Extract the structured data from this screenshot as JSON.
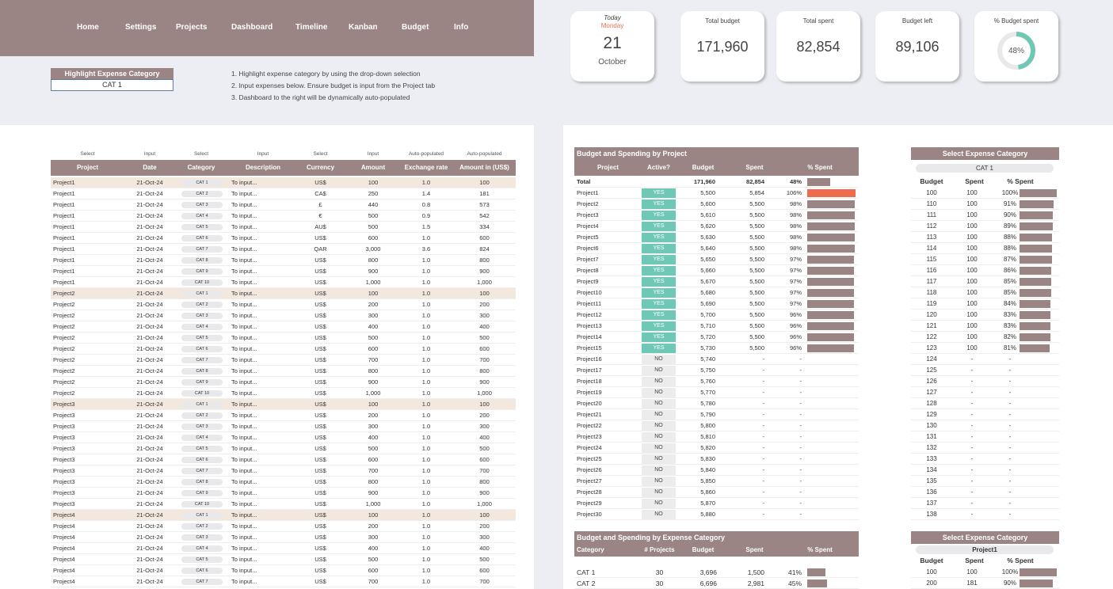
{
  "nav": [
    "Home",
    "Settings",
    "Projects",
    "Dashboard",
    "Timeline",
    "Kanban",
    "Budget",
    "Info"
  ],
  "highlight": {
    "label": "Highlight Expense Category",
    "value": "CAT 1"
  },
  "instructions": [
    "1. Highlight expense category by using the drop-down selection",
    "2. Input expenses below. Ensure budget is input from the Project tab",
    "3. Dashboard to the right will be dynamically auto-populated"
  ],
  "today": {
    "label": "Today",
    "day": "Monday",
    "date": "21",
    "month": "October"
  },
  "kpis": [
    {
      "title": "Total budget",
      "value": "171,960"
    },
    {
      "title": "Total spent",
      "value": "82,854"
    },
    {
      "title": "Budget left",
      "value": "89,106"
    },
    {
      "title": "% Budget spent",
      "value": "48%",
      "fraction": 0.48
    }
  ],
  "colors": {
    "accent": "#9a8584",
    "teal": "#6fc8b6",
    "over": "#ef6b4e",
    "highlight_row": "#f3e8de"
  },
  "expense_table": {
    "subheaders": [
      "Select",
      "Input",
      "Select",
      "Input",
      "Select",
      "Input",
      "Auto-populated",
      "Auto-populated"
    ],
    "headers": [
      "Project",
      "Date",
      "Category",
      "Description",
      "Currency",
      "Amount",
      "Exchange rate",
      "Amount in (US$)"
    ],
    "rows": [
      [
        "Project1",
        "21-Oct-24",
        "CAT 1",
        "To input...",
        "US$",
        "100",
        "1.0",
        "100"
      ],
      [
        "Project1",
        "21-Oct-24",
        "CAT 2",
        "To input...",
        "CA$",
        "250",
        "1.4",
        "181"
      ],
      [
        "Project1",
        "21-Oct-24",
        "CAT 3",
        "To input...",
        "£",
        "440",
        "0.8",
        "573"
      ],
      [
        "Project1",
        "21-Oct-24",
        "CAT 4",
        "To input...",
        "€",
        "500",
        "0.9",
        "542"
      ],
      [
        "Project1",
        "21-Oct-24",
        "CAT 5",
        "To input...",
        "AU$",
        "500",
        "1.5",
        "334"
      ],
      [
        "Project1",
        "21-Oct-24",
        "CAT 6",
        "To input...",
        "US$",
        "600",
        "1.0",
        "600"
      ],
      [
        "Project1",
        "21-Oct-24",
        "CAT 7",
        "To input...",
        "QAR",
        "3,000",
        "3.6",
        "824"
      ],
      [
        "Project1",
        "21-Oct-24",
        "CAT 8",
        "To input...",
        "US$",
        "800",
        "1.0",
        "800"
      ],
      [
        "Project1",
        "21-Oct-24",
        "CAT 9",
        "To input...",
        "US$",
        "900",
        "1.0",
        "900"
      ],
      [
        "Project1",
        "21-Oct-24",
        "CAT 10",
        "To input...",
        "US$",
        "1,000",
        "1.0",
        "1,000"
      ],
      [
        "Project2",
        "21-Oct-24",
        "CAT 1",
        "To input...",
        "US$",
        "100",
        "1.0",
        "100"
      ],
      [
        "Project2",
        "21-Oct-24",
        "CAT 2",
        "To input...",
        "US$",
        "200",
        "1.0",
        "200"
      ],
      [
        "Project2",
        "21-Oct-24",
        "CAT 3",
        "To input...",
        "US$",
        "300",
        "1.0",
        "300"
      ],
      [
        "Project2",
        "21-Oct-24",
        "CAT 4",
        "To input...",
        "US$",
        "400",
        "1.0",
        "400"
      ],
      [
        "Project2",
        "21-Oct-24",
        "CAT 5",
        "To input...",
        "US$",
        "500",
        "1.0",
        "500"
      ],
      [
        "Project2",
        "21-Oct-24",
        "CAT 6",
        "To input...",
        "US$",
        "600",
        "1.0",
        "600"
      ],
      [
        "Project2",
        "21-Oct-24",
        "CAT 7",
        "To input...",
        "US$",
        "700",
        "1.0",
        "700"
      ],
      [
        "Project2",
        "21-Oct-24",
        "CAT 8",
        "To input...",
        "US$",
        "800",
        "1.0",
        "800"
      ],
      [
        "Project2",
        "21-Oct-24",
        "CAT 9",
        "To input...",
        "US$",
        "900",
        "1.0",
        "900"
      ],
      [
        "Project2",
        "21-Oct-24",
        "CAT 10",
        "To input...",
        "US$",
        "1,000",
        "1.0",
        "1,000"
      ],
      [
        "Project3",
        "21-Oct-24",
        "CAT 1",
        "To input...",
        "US$",
        "100",
        "1.0",
        "100"
      ],
      [
        "Project3",
        "21-Oct-24",
        "CAT 2",
        "To input...",
        "US$",
        "200",
        "1.0",
        "200"
      ],
      [
        "Project3",
        "21-Oct-24",
        "CAT 3",
        "To input...",
        "US$",
        "300",
        "1.0",
        "300"
      ],
      [
        "Project3",
        "21-Oct-24",
        "CAT 4",
        "To input...",
        "US$",
        "400",
        "1.0",
        "400"
      ],
      [
        "Project3",
        "21-Oct-24",
        "CAT 5",
        "To input...",
        "US$",
        "500",
        "1.0",
        "500"
      ],
      [
        "Project3",
        "21-Oct-24",
        "CAT 6",
        "To input...",
        "US$",
        "600",
        "1.0",
        "600"
      ],
      [
        "Project3",
        "21-Oct-24",
        "CAT 7",
        "To input...",
        "US$",
        "700",
        "1.0",
        "700"
      ],
      [
        "Project3",
        "21-Oct-24",
        "CAT 8",
        "To input...",
        "US$",
        "800",
        "1.0",
        "800"
      ],
      [
        "Project3",
        "21-Oct-24",
        "CAT 9",
        "To input...",
        "US$",
        "900",
        "1.0",
        "900"
      ],
      [
        "Project3",
        "21-Oct-24",
        "CAT 10",
        "To input...",
        "US$",
        "1,000",
        "1.0",
        "1,000"
      ],
      [
        "Project4",
        "21-Oct-24",
        "CAT 1",
        "To input...",
        "US$",
        "100",
        "1.0",
        "100"
      ],
      [
        "Project4",
        "21-Oct-24",
        "CAT 2",
        "To input...",
        "US$",
        "200",
        "1.0",
        "200"
      ],
      [
        "Project4",
        "21-Oct-24",
        "CAT 3",
        "To input...",
        "US$",
        "300",
        "1.0",
        "300"
      ],
      [
        "Project4",
        "21-Oct-24",
        "CAT 4",
        "To input...",
        "US$",
        "400",
        "1.0",
        "400"
      ],
      [
        "Project4",
        "21-Oct-24",
        "CAT 5",
        "To input...",
        "US$",
        "500",
        "1.0",
        "500"
      ],
      [
        "Project4",
        "21-Oct-24",
        "CAT 6",
        "To input...",
        "US$",
        "600",
        "1.0",
        "600"
      ],
      [
        "Project4",
        "21-Oct-24",
        "CAT 7",
        "To input...",
        "US$",
        "700",
        "1.0",
        "700"
      ]
    ]
  },
  "project_table": {
    "title": "Budget and Spending by Project",
    "headers": [
      "Project",
      "Active?",
      "Budget",
      "Spent",
      "% Spent"
    ],
    "total": {
      "label": "Total",
      "budget": "171,960",
      "spent": "82,854",
      "pct": "48%",
      "fraction": 0.48
    },
    "rows": [
      [
        "Project1",
        "YES",
        "5,500",
        "5,854",
        "106%",
        1.06
      ],
      [
        "Project2",
        "YES",
        "5,600",
        "5,500",
        "98%",
        0.98
      ],
      [
        "Project3",
        "YES",
        "5,610",
        "5,500",
        "98%",
        0.98
      ],
      [
        "Project4",
        "YES",
        "5,620",
        "5,500",
        "98%",
        0.98
      ],
      [
        "Project5",
        "YES",
        "5,630",
        "5,500",
        "98%",
        0.98
      ],
      [
        "Project6",
        "YES",
        "5,640",
        "5,500",
        "98%",
        0.98
      ],
      [
        "Project7",
        "YES",
        "5,650",
        "5,500",
        "97%",
        0.97
      ],
      [
        "Project8",
        "YES",
        "5,660",
        "5,500",
        "97%",
        0.97
      ],
      [
        "Project9",
        "YES",
        "5,670",
        "5,500",
        "97%",
        0.97
      ],
      [
        "Project10",
        "YES",
        "5,680",
        "5,500",
        "97%",
        0.97
      ],
      [
        "Project11",
        "YES",
        "5,690",
        "5,500",
        "97%",
        0.97
      ],
      [
        "Project12",
        "YES",
        "5,700",
        "5,500",
        "96%",
        0.96
      ],
      [
        "Project13",
        "YES",
        "5,710",
        "5,500",
        "96%",
        0.96
      ],
      [
        "Project14",
        "YES",
        "5,720",
        "5,500",
        "96%",
        0.96
      ],
      [
        "Project15",
        "YES",
        "5,730",
        "5,500",
        "96%",
        0.96
      ],
      [
        "Project16",
        "NO",
        "5,740",
        "-",
        "-",
        0
      ],
      [
        "Project17",
        "NO",
        "5,750",
        "-",
        "-",
        0
      ],
      [
        "Project18",
        "NO",
        "5,760",
        "-",
        "-",
        0
      ],
      [
        "Project19",
        "NO",
        "5,770",
        "-",
        "-",
        0
      ],
      [
        "Project20",
        "NO",
        "5,780",
        "-",
        "-",
        0
      ],
      [
        "Project21",
        "NO",
        "5,790",
        "-",
        "-",
        0
      ],
      [
        "Project22",
        "NO",
        "5,800",
        "-",
        "-",
        0
      ],
      [
        "Project23",
        "NO",
        "5,810",
        "-",
        "-",
        0
      ],
      [
        "Project24",
        "NO",
        "5,820",
        "-",
        "-",
        0
      ],
      [
        "Project25",
        "NO",
        "5,830",
        "-",
        "-",
        0
      ],
      [
        "Project26",
        "NO",
        "5,840",
        "-",
        "-",
        0
      ],
      [
        "Project27",
        "NO",
        "5,850",
        "-",
        "-",
        0
      ],
      [
        "Project28",
        "NO",
        "5,860",
        "-",
        "-",
        0
      ],
      [
        "Project29",
        "NO",
        "5,870",
        "-",
        "-",
        0
      ],
      [
        "Project30",
        "NO",
        "5,880",
        "-",
        "-",
        0
      ]
    ]
  },
  "category_select": {
    "title": "Select Expense Category",
    "value": "CAT 1",
    "headers": [
      "Budget",
      "Spent",
      "% Spent"
    ],
    "rows": [
      [
        "100",
        "100",
        "100%",
        1.0
      ],
      [
        "110",
        "100",
        "91%",
        0.91
      ],
      [
        "111",
        "100",
        "90%",
        0.9
      ],
      [
        "112",
        "100",
        "89%",
        0.89
      ],
      [
        "113",
        "100",
        "88%",
        0.88
      ],
      [
        "114",
        "100",
        "88%",
        0.88
      ],
      [
        "115",
        "100",
        "87%",
        0.87
      ],
      [
        "116",
        "100",
        "86%",
        0.86
      ],
      [
        "117",
        "100",
        "85%",
        0.85
      ],
      [
        "118",
        "100",
        "85%",
        0.85
      ],
      [
        "119",
        "100",
        "84%",
        0.84
      ],
      [
        "120",
        "100",
        "83%",
        0.83
      ],
      [
        "121",
        "100",
        "83%",
        0.83
      ],
      [
        "122",
        "100",
        "82%",
        0.82
      ],
      [
        "123",
        "100",
        "81%",
        0.81
      ],
      [
        "124",
        "-",
        "-",
        0
      ],
      [
        "125",
        "-",
        "-",
        0
      ],
      [
        "126",
        "-",
        "-",
        0
      ],
      [
        "127",
        "-",
        "-",
        0
      ],
      [
        "128",
        "-",
        "-",
        0
      ],
      [
        "129",
        "-",
        "-",
        0
      ],
      [
        "130",
        "-",
        "-",
        0
      ],
      [
        "131",
        "-",
        "-",
        0
      ],
      [
        "132",
        "-",
        "-",
        0
      ],
      [
        "133",
        "-",
        "-",
        0
      ],
      [
        "134",
        "-",
        "-",
        0
      ],
      [
        "135",
        "-",
        "-",
        0
      ],
      [
        "136",
        "-",
        "-",
        0
      ],
      [
        "137",
        "-",
        "-",
        0
      ],
      [
        "138",
        "-",
        "-",
        0
      ]
    ]
  },
  "category_table": {
    "title": "Budget and Spending by Expense Category",
    "headers": [
      "Category",
      "# Projects",
      "Budget",
      "Spent",
      "% Spent"
    ],
    "rows": [
      [
        "CAT 1",
        "30",
        "3,696",
        "1,500",
        "41%",
        0.41
      ],
      [
        "CAT 2",
        "30",
        "6,696",
        "2,981",
        "45%",
        0.45
      ]
    ]
  },
  "project_select": {
    "title": "Select Expense Category",
    "value": "Project1",
    "headers": [
      "Budget",
      "Spent",
      "% Spent"
    ],
    "rows": [
      [
        "100",
        "100",
        "100%",
        1.0
      ],
      [
        "200",
        "181",
        "90%",
        0.9
      ]
    ]
  }
}
